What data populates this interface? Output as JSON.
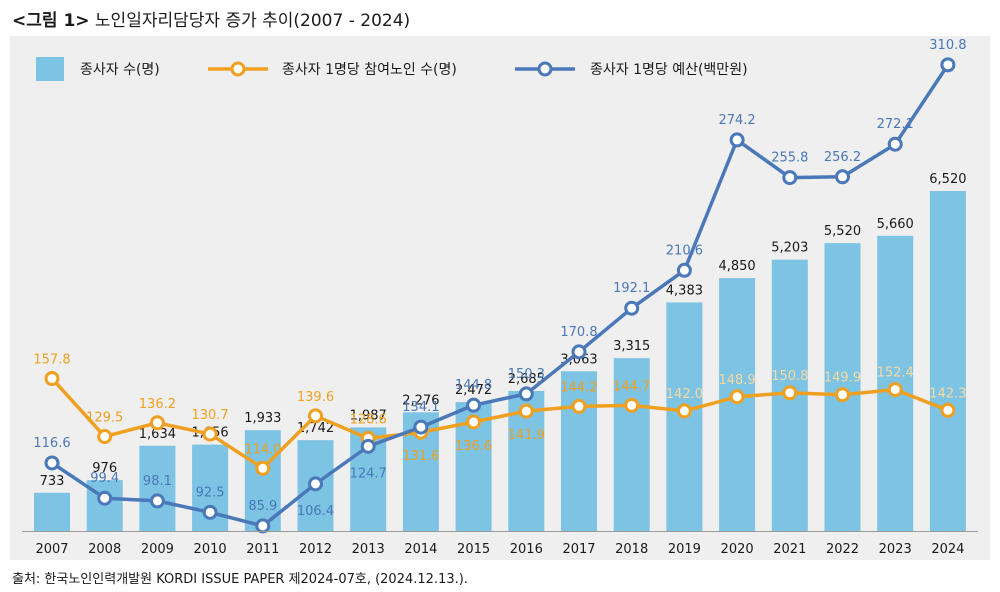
{
  "figure": {
    "label": "<그림 1>",
    "title": "노인일자리담당자 증가 추이(2007 - 2024)",
    "source": "출처:  한국노인인력개발원 KORDI ISSUE PAPER 제2024-07호, (2024.12.13.)."
  },
  "colors": {
    "bar": "#7cc3e4",
    "participants_line": "#f0a020",
    "budget_line": "#4a78b8",
    "panel_bg": "#efefef"
  },
  "chart_data": {
    "type": "bar",
    "categories": [
      "2007",
      "2008",
      "2009",
      "2010",
      "2011",
      "2012",
      "2013",
      "2014",
      "2015",
      "2016",
      "2017",
      "2018",
      "2019",
      "2020",
      "2021",
      "2022",
      "2023",
      "2024"
    ],
    "series": [
      {
        "name": "종사자 수(명)",
        "type": "bar",
        "values": [
          733,
          976,
          1634,
          1656,
          1933,
          1742,
          1987,
          2276,
          2472,
          2685,
          3063,
          3315,
          4383,
          4850,
          5203,
          5520,
          5660,
          6520
        ],
        "labels": [
          "733",
          "976",
          "1,634",
          "1,656",
          "1,933",
          "1,742",
          "1,987",
          "2,276",
          "2,472",
          "2,685",
          "3,063",
          "3,315",
          "4,383",
          "4,850",
          "5,203",
          "5,520",
          "5,660",
          "6,520"
        ]
      },
      {
        "name": "종사자 1명당 참여노인 수(명)",
        "type": "line",
        "values": [
          157.8,
          129.5,
          136.2,
          130.7,
          114.0,
          139.6,
          128.6,
          131.6,
          136.6,
          141.9,
          144.2,
          144.7,
          142.0,
          148.9,
          150.8,
          149.9,
          152.4,
          142.3
        ],
        "labels": [
          "157.8",
          "129.5",
          "136.2",
          "130.7",
          "114.0",
          "139.6",
          "128.6",
          "131.6",
          "136.6",
          "141.9",
          "144.2",
          "144.7",
          "142.0",
          "148.9",
          "150.8",
          "149.9",
          "152.4",
          "142.3"
        ]
      },
      {
        "name": "종사자 1명당 예산(백만원)",
        "type": "line",
        "values": [
          116.6,
          99.4,
          98.1,
          92.5,
          85.9,
          106.4,
          124.7,
          134.1,
          144.8,
          150.3,
          170.8,
          192.1,
          210.6,
          274.2,
          255.8,
          256.2,
          272.1,
          310.8
        ],
        "labels": [
          "116.6",
          "99.4",
          "98.1",
          "92.5",
          "85.9",
          "106.4",
          "124.7",
          "134.1",
          "144.8",
          "150.3",
          "170.8",
          "192.1",
          "210.6",
          "274.2",
          "255.8",
          "256.2",
          "272.1",
          "310.8"
        ]
      }
    ],
    "legend_position": "top-left",
    "grid": false
  }
}
